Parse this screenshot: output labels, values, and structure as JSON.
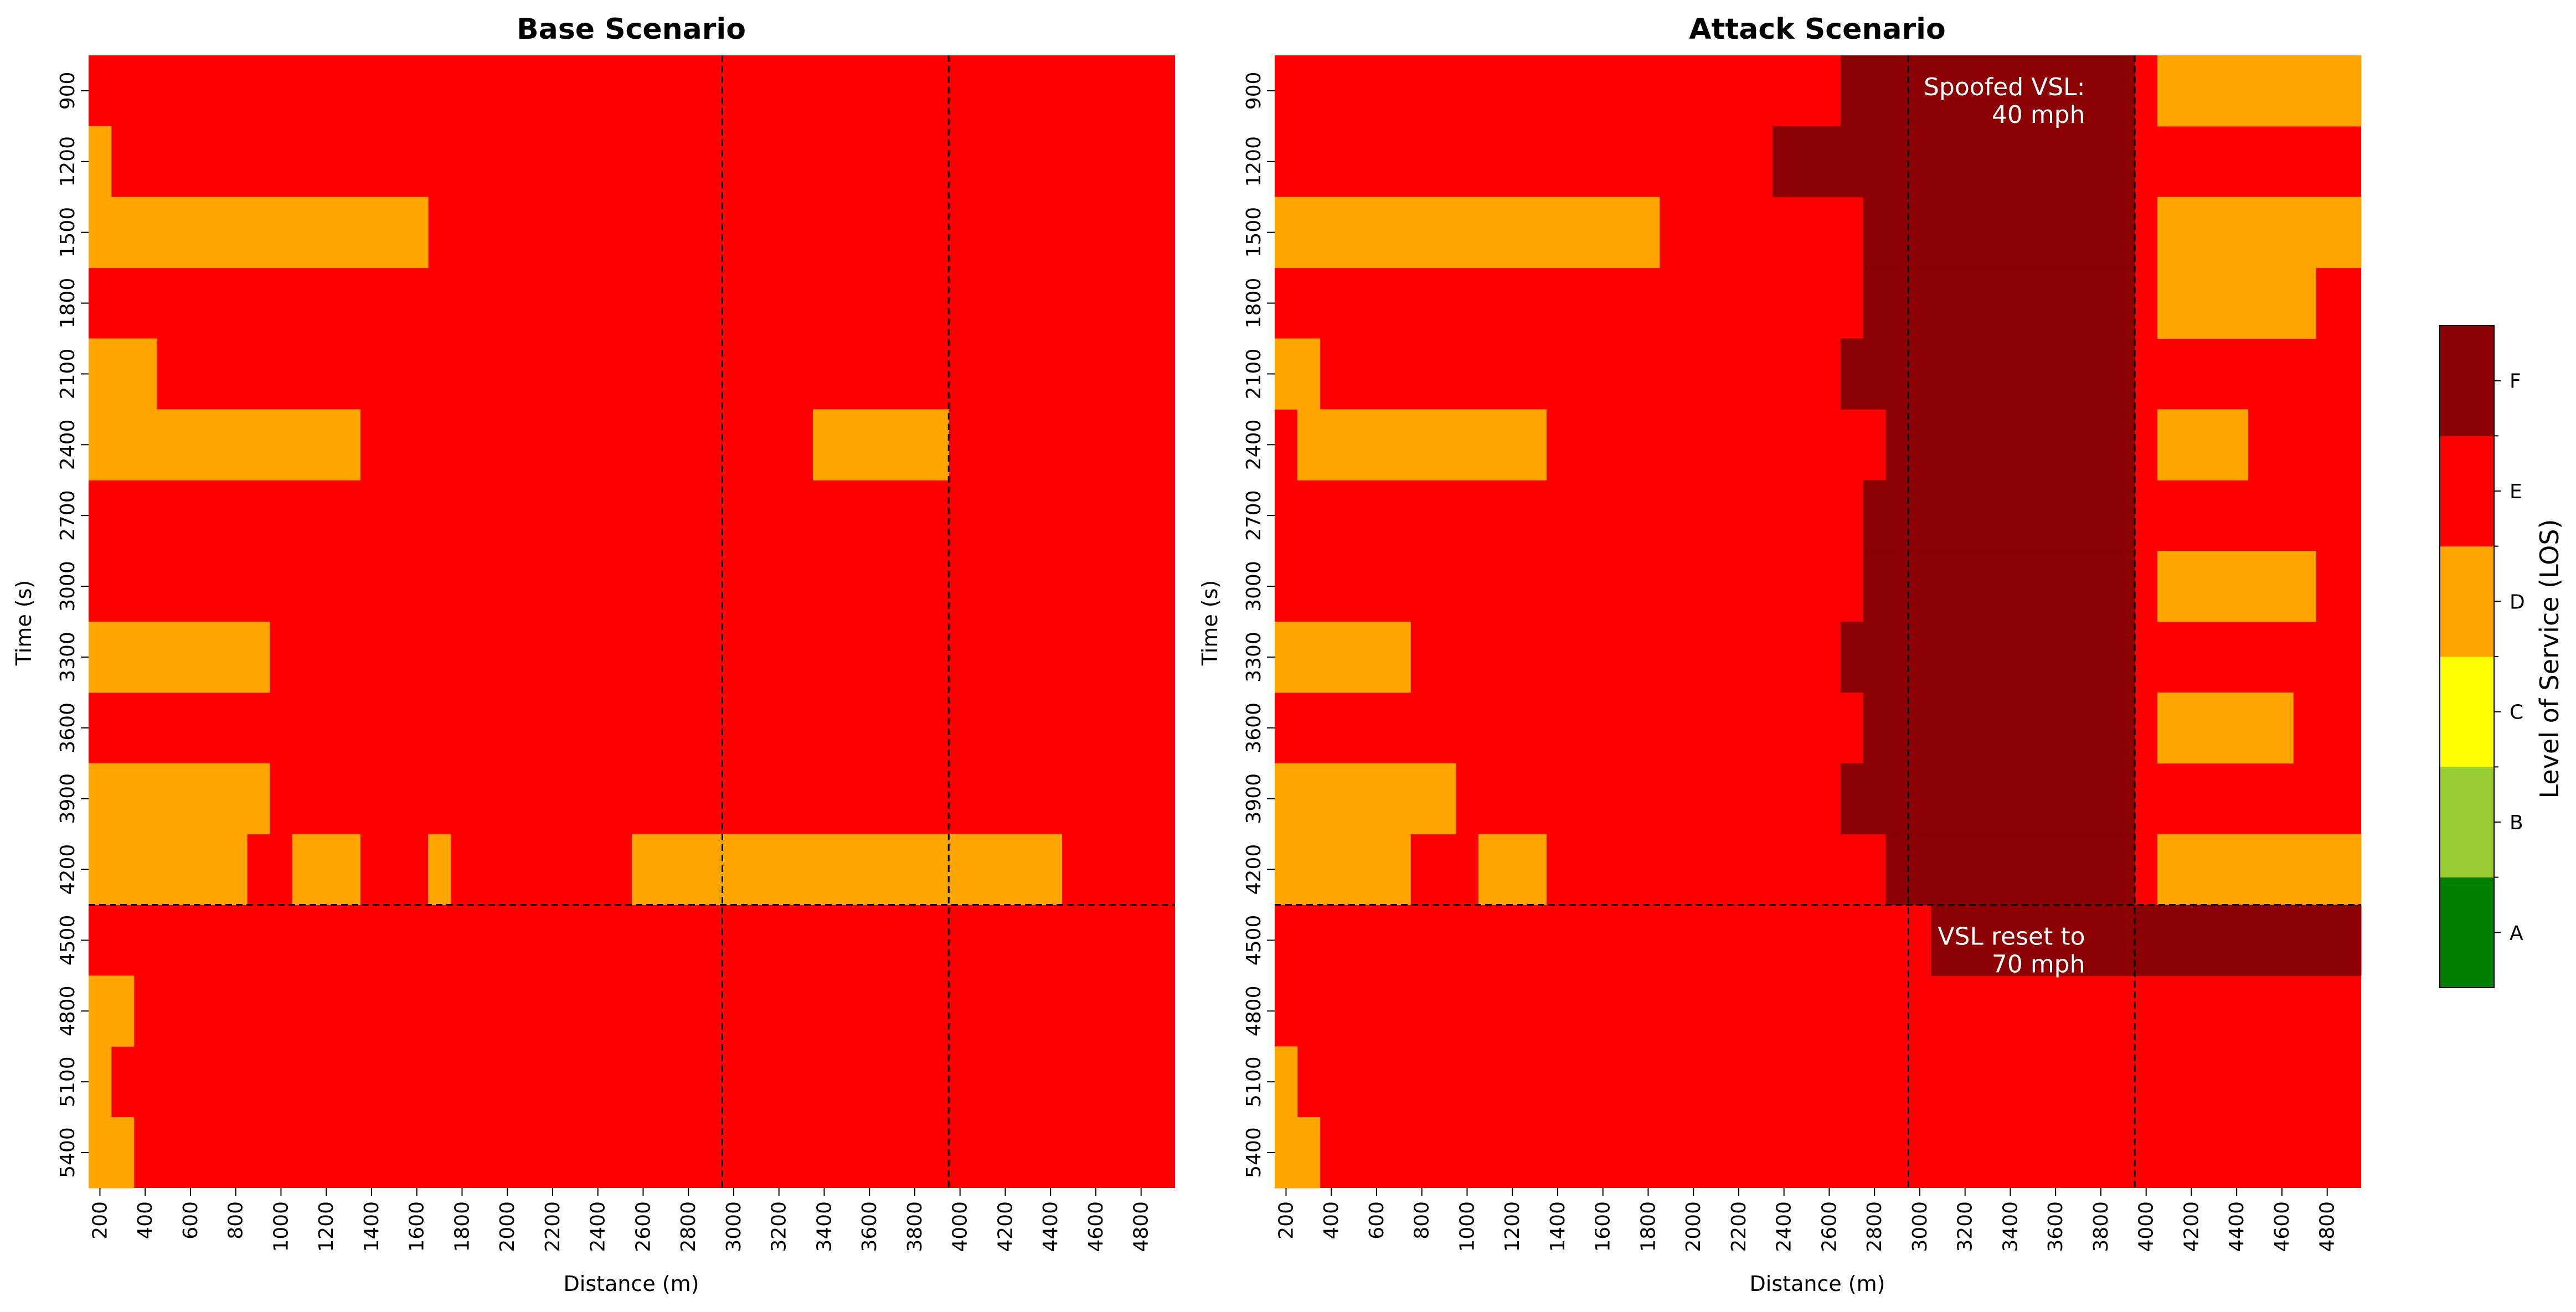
{
  "colorbar": {
    "label": "Level of Service (LOS)",
    "levels": [
      {
        "code": "A",
        "color": "#008000"
      },
      {
        "code": "B",
        "color": "#9ACD32"
      },
      {
        "code": "C",
        "color": "#FFFF00"
      },
      {
        "code": "D",
        "color": "#FFA500"
      },
      {
        "code": "E",
        "color": "#FF0000"
      },
      {
        "code": "F",
        "color": "#8B0000"
      }
    ]
  },
  "chart_data": [
    {
      "type": "heatmap",
      "title": "Base Scenario",
      "xlabel": "Distance (m)",
      "ylabel": "Time (s)",
      "x_start": 200,
      "x_end": 5000,
      "x_bin": 100,
      "x_ticks": [
        200,
        400,
        600,
        800,
        1000,
        1200,
        1400,
        1600,
        1800,
        2000,
        2200,
        2400,
        2600,
        2800,
        3000,
        3200,
        3400,
        3600,
        3800,
        4000,
        4200,
        4400,
        4600,
        4800
      ],
      "y_ticks": [
        900,
        1200,
        1500,
        1800,
        2100,
        2400,
        2700,
        3000,
        3300,
        3600,
        3900,
        4200,
        4500,
        4800,
        5100,
        5400
      ],
      "default_los": "E",
      "cells": [
        {
          "t": 1200,
          "from": 200,
          "to": 300,
          "los": "D"
        },
        {
          "t": 1500,
          "from": 200,
          "to": 1700,
          "los": "D"
        },
        {
          "t": 2100,
          "from": 200,
          "to": 500,
          "los": "D"
        },
        {
          "t": 2400,
          "from": 200,
          "to": 1400,
          "los": "D"
        },
        {
          "t": 2400,
          "from": 3400,
          "to": 4000,
          "los": "D"
        },
        {
          "t": 3300,
          "from": 200,
          "to": 1000,
          "los": "D"
        },
        {
          "t": 3900,
          "from": 200,
          "to": 1000,
          "los": "D"
        },
        {
          "t": 4200,
          "from": 200,
          "to": 900,
          "los": "D"
        },
        {
          "t": 4200,
          "from": 1100,
          "to": 1400,
          "los": "D"
        },
        {
          "t": 4200,
          "from": 1700,
          "to": 1800,
          "los": "D"
        },
        {
          "t": 4200,
          "from": 2600,
          "to": 4500,
          "los": "D"
        },
        {
          "t": 4800,
          "from": 200,
          "to": 400,
          "los": "D"
        },
        {
          "t": 5100,
          "from": 200,
          "to": 300,
          "los": "D"
        },
        {
          "t": 5400,
          "from": 200,
          "to": 400,
          "los": "D"
        }
      ],
      "vlines": [
        3000,
        4000
      ],
      "hline_between": [
        4200,
        4500
      ]
    },
    {
      "type": "heatmap",
      "title": "Attack Scenario",
      "xlabel": "Distance (m)",
      "ylabel": "Time (s)",
      "x_start": 200,
      "x_end": 5000,
      "x_bin": 100,
      "x_ticks": [
        200,
        400,
        600,
        800,
        1000,
        1200,
        1400,
        1600,
        1800,
        2000,
        2200,
        2400,
        2600,
        2800,
        3000,
        3200,
        3400,
        3600,
        3800,
        4000,
        4200,
        4400,
        4600,
        4800
      ],
      "y_ticks": [
        900,
        1200,
        1500,
        1800,
        2100,
        2400,
        2700,
        3000,
        3300,
        3600,
        3900,
        4200,
        4500,
        4800,
        5100,
        5400
      ],
      "default_los": "E",
      "cells": [
        {
          "t": 900,
          "from": 2700,
          "to": 4000,
          "los": "F"
        },
        {
          "t": 900,
          "from": 4100,
          "to": 5000,
          "los": "D"
        },
        {
          "t": 1200,
          "from": 2400,
          "to": 4000,
          "los": "F"
        },
        {
          "t": 1500,
          "from": 200,
          "to": 1900,
          "los": "D"
        },
        {
          "t": 1500,
          "from": 2800,
          "to": 4000,
          "los": "F"
        },
        {
          "t": 1500,
          "from": 4100,
          "to": 4800,
          "los": "D"
        },
        {
          "t": 1500,
          "from": 4800,
          "to": 5000,
          "los": "D"
        },
        {
          "t": 1800,
          "from": 2800,
          "to": 4000,
          "los": "F"
        },
        {
          "t": 1800,
          "from": 4100,
          "to": 4800,
          "los": "D"
        },
        {
          "t": 2100,
          "from": 200,
          "to": 400,
          "los": "D"
        },
        {
          "t": 2100,
          "from": 2700,
          "to": 4000,
          "los": "F"
        },
        {
          "t": 2400,
          "from": 300,
          "to": 1400,
          "los": "D"
        },
        {
          "t": 2400,
          "from": 2900,
          "to": 4000,
          "los": "F"
        },
        {
          "t": 2400,
          "from": 4100,
          "to": 4500,
          "los": "D"
        },
        {
          "t": 2700,
          "from": 2800,
          "to": 4000,
          "los": "F"
        },
        {
          "t": 3000,
          "from": 2800,
          "to": 4000,
          "los": "F"
        },
        {
          "t": 3000,
          "from": 4100,
          "to": 4800,
          "los": "D"
        },
        {
          "t": 3300,
          "from": 200,
          "to": 800,
          "los": "D"
        },
        {
          "t": 3300,
          "from": 2700,
          "to": 4000,
          "los": "F"
        },
        {
          "t": 3600,
          "from": 2800,
          "to": 4000,
          "los": "F"
        },
        {
          "t": 3600,
          "from": 4100,
          "to": 4700,
          "los": "D"
        },
        {
          "t": 3900,
          "from": 200,
          "to": 1000,
          "los": "D"
        },
        {
          "t": 3900,
          "from": 2700,
          "to": 4000,
          "los": "F"
        },
        {
          "t": 4200,
          "from": 200,
          "to": 800,
          "los": "D"
        },
        {
          "t": 4200,
          "from": 1100,
          "to": 1400,
          "los": "D"
        },
        {
          "t": 4200,
          "from": 2900,
          "to": 4000,
          "los": "F"
        },
        {
          "t": 4200,
          "from": 4100,
          "to": 5000,
          "los": "D"
        },
        {
          "t": 4500,
          "from": 3100,
          "to": 5000,
          "los": "F"
        },
        {
          "t": 5100,
          "from": 200,
          "to": 300,
          "los": "D"
        },
        {
          "t": 5400,
          "from": 200,
          "to": 400,
          "los": "D"
        }
      ],
      "vlines": [
        3000,
        4000
      ],
      "hline_between": [
        4200,
        4500
      ],
      "annotations": [
        {
          "lines": [
            "Spoofed VSL:",
            "40 mph"
          ],
          "at_x": 3800,
          "at_t": 900
        },
        {
          "lines": [
            "VSL reset to",
            "70 mph"
          ],
          "at_x": 3800,
          "at_t": 4500
        }
      ]
    }
  ]
}
